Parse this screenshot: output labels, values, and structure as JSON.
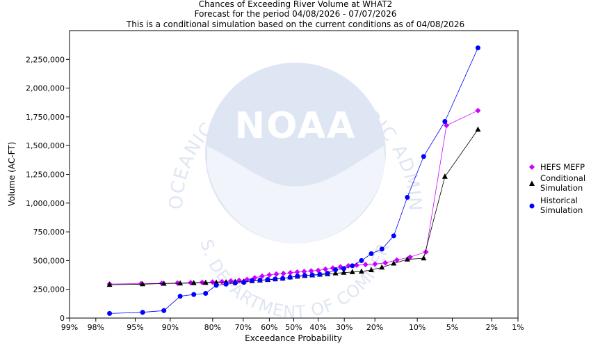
{
  "title_lines": [
    "Chances of Exceeding River Volume at WHAT2",
    "Forecast for the period 04/08/2026 - 07/07/2026",
    "This is a conditional simulation based on the current conditions as of 04/08/2026"
  ],
  "watermark": {
    "org": "NOAA",
    "ring_text_top": "NATIONAL OCEANIC AND ATMOSPHERIC ADMINISTRATION",
    "ring_text_bottom": "U.S. DEPARTMENT OF COMMERCE",
    "color": "#dfe6f3"
  },
  "chart_data": {
    "type": "line",
    "x_scale": "normal-probability (reversed)",
    "xlabel": "Exceedance Probability",
    "ylabel": "Volume (AC-FT)",
    "x_ticks": [
      "99%",
      "98%",
      "95%",
      "90%",
      "80%",
      "70%",
      "60%",
      "50%",
      "40%",
      "30%",
      "20%",
      "10%",
      "5%",
      "2%",
      "1%"
    ],
    "x_tick_values": [
      99,
      98,
      95,
      90,
      80,
      70,
      60,
      50,
      40,
      30,
      20,
      10,
      5,
      2,
      1
    ],
    "y_ticks": [
      "0",
      "250,000",
      "500,000",
      "750,000",
      "1,000,000",
      "1,250,000",
      "1,500,000",
      "1,750,000",
      "2,000,000",
      "2,250,000"
    ],
    "y_tick_values": [
      0,
      250000,
      500000,
      750000,
      1000000,
      1250000,
      1500000,
      1750000,
      2000000,
      2250000
    ],
    "ylim": [
      0,
      2500000
    ],
    "x_probability": [
      97.2,
      94.4,
      91.7,
      88.9,
      86.1,
      83.3,
      80.6,
      77.8,
      75.0,
      72.2,
      69.4,
      66.7,
      63.9,
      61.1,
      58.3,
      55.6,
      52.8,
      50.0,
      47.2,
      44.4,
      41.7,
      38.9,
      36.1,
      33.3,
      30.6,
      27.8,
      25.0,
      22.2,
      19.4,
      16.7,
      13.9,
      11.1,
      8.3,
      5.6,
      2.8
    ],
    "legend_position": "right",
    "grid": false,
    "series": [
      {
        "name": "HEFS MEFP",
        "color": "#cc00ff",
        "marker": "diamond",
        "points": [
          [
            97.2,
            296000
          ],
          [
            93.4,
            300000
          ],
          [
            89.5,
            302000
          ],
          [
            85.6,
            305000
          ],
          [
            81.8,
            308000
          ],
          [
            77.9,
            310000
          ],
          [
            74.0,
            313000
          ],
          [
            70.2,
            316000
          ],
          [
            66.3,
            320000
          ],
          [
            62.4,
            325000
          ],
          [
            58.5,
            330000
          ],
          [
            54.7,
            348000
          ],
          [
            50.8,
            362000
          ],
          [
            46.9,
            374000
          ],
          [
            43.1,
            380000
          ],
          [
            39.2,
            388000
          ],
          [
            35.3,
            395000
          ],
          [
            31.5,
            402000
          ],
          [
            27.6,
            410000
          ],
          [
            23.7,
            420000
          ],
          [
            19.8,
            440000
          ],
          [
            16.0,
            460000
          ],
          [
            12.1,
            480000
          ],
          [
            8.2,
            500000
          ],
          [
            4.4,
            520000
          ],
          [
            2.6,
            570000
          ],
          [
            5.6,
            1680000
          ],
          [
            2.8,
            1800000
          ]
        ],
        "values_by_index": [
          296000,
          300000,
          302000,
          305000,
          308000,
          310000,
          313000,
          316000,
          322000,
          328000,
          335000,
          350000,
          365000,
          375000,
          383000,
          388000,
          394000,
          400000,
          405000,
          410000,
          415000,
          425000,
          435000,
          445000,
          455000,
          460000,
          465000,
          470000,
          480000,
          505000,
          530000,
          575000,
          1675000,
          1805000
        ]
      },
      {
        "name": "Conditional Simulation",
        "color": "#000000",
        "marker": "triangle",
        "values_by_index": [
          290000,
          295000,
          300000,
          302000,
          305000,
          307000,
          309000,
          312000,
          315000,
          318000,
          322000,
          328000,
          332000,
          338000,
          345000,
          355000,
          362000,
          368000,
          372000,
          378000,
          383000,
          390000,
          395000,
          400000,
          405000,
          418000,
          440000,
          475000,
          510000,
          520000,
          1230000,
          1640000
        ]
      },
      {
        "name": "Historical Simulation",
        "color": "#0000ff",
        "marker": "circle",
        "values_by_index": [
          40000,
          50000,
          65000,
          190000,
          205000,
          215000,
          285000,
          295000,
          305000,
          310000,
          325000,
          330000,
          335000,
          340000,
          345000,
          355000,
          365000,
          370000,
          375000,
          380000,
          390000,
          420000,
          430000,
          455000,
          500000,
          560000,
          600000,
          715000,
          1050000,
          1405000,
          1710000,
          2350000
        ]
      }
    ]
  },
  "legend": {
    "items": [
      {
        "label_lines": [
          "HEFS MEFP"
        ],
        "color": "#cc00ff",
        "marker": "diamond"
      },
      {
        "label_lines": [
          "Conditional",
          "Simulation"
        ],
        "color": "#000000",
        "marker": "triangle"
      },
      {
        "label_lines": [
          "Historical",
          "Simulation"
        ],
        "color": "#0000ff",
        "marker": "circle"
      }
    ]
  }
}
